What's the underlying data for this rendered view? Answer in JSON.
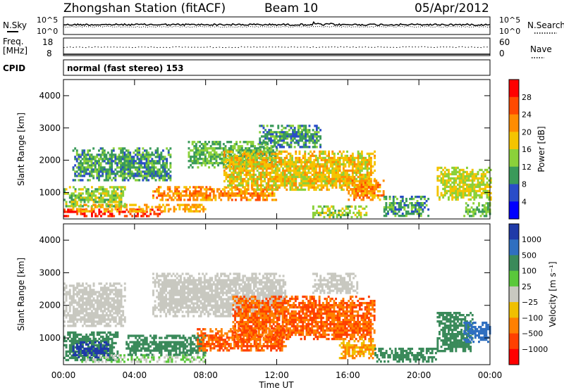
{
  "header": {
    "station": "Zhongshan Station (fitACF)",
    "beam": "Beam 10",
    "date": "05/Apr/2012"
  },
  "noise_panel": {
    "left_label": "N.Sky",
    "left_ticks": [
      "10^5",
      "10^0"
    ],
    "right_label": "N.Search",
    "right_ticks": [
      "10^5",
      "10^0"
    ]
  },
  "freq_panel": {
    "left_label_line1": "Freq.",
    "left_label_line2": "[MHz]",
    "left_ticks": [
      "18",
      "8"
    ],
    "right_label": "Nave",
    "right_ticks": [
      "60",
      "0"
    ]
  },
  "cpid_panel": {
    "label": "CPID",
    "text": "normal (fast stereo) 153"
  },
  "chart_data": [
    {
      "type": "heatmap",
      "name": "power",
      "ylabel": "Slant Range [km]",
      "xlabel": "Time UT",
      "ylim": [
        180,
        4500
      ],
      "yticks": [
        "1000",
        "2000",
        "3000",
        "4000"
      ],
      "xticks": [
        "00:00",
        "04:00",
        "08:00",
        "12:00",
        "16:00",
        "20:00",
        "00:00"
      ],
      "colorbar": {
        "label": "Power [dB]",
        "ticks": [
          "28",
          "24",
          "20",
          "16",
          "12",
          "8",
          "4"
        ],
        "colors": [
          "#ff0000",
          "#ff4a00",
          "#ff8c00",
          "#f5c400",
          "#8bd13a",
          "#3a9a5a",
          "#2a4dc8",
          "#0000ff"
        ]
      },
      "features": [
        {
          "t0": 0.0,
          "t1": 5.5,
          "r0": 250,
          "r1": 500,
          "level": 28
        },
        {
          "t0": 0.5,
          "t1": 8.0,
          "r0": 400,
          "r1": 650,
          "level": 20
        },
        {
          "t0": 0.0,
          "t1": 3.5,
          "r0": 600,
          "r1": 1200,
          "level": 14
        },
        {
          "t0": 0.5,
          "t1": 6.0,
          "r0": 1400,
          "r1": 2400,
          "level": 10
        },
        {
          "t0": 5.0,
          "t1": 12.0,
          "r0": 800,
          "r1": 1200,
          "level": 22
        },
        {
          "t0": 7.0,
          "t1": 12.0,
          "r0": 1800,
          "r1": 2600,
          "level": 12
        },
        {
          "t0": 9.0,
          "t1": 17.5,
          "r0": 1100,
          "r1": 2300,
          "level": 18
        },
        {
          "t0": 11.0,
          "t1": 14.5,
          "r0": 2400,
          "r1": 3100,
          "level": 10
        },
        {
          "t0": 14.0,
          "t1": 17.0,
          "r0": 250,
          "r1": 600,
          "level": 14
        },
        {
          "t0": 16.0,
          "t1": 18.0,
          "r0": 800,
          "r1": 1400,
          "level": 22
        },
        {
          "t0": 18.0,
          "t1": 20.5,
          "r0": 250,
          "r1": 900,
          "level": 10
        },
        {
          "t0": 21.0,
          "t1": 24.0,
          "r0": 800,
          "r1": 1800,
          "level": 16
        },
        {
          "t0": 22.5,
          "t1": 24.0,
          "r0": 250,
          "r1": 700,
          "level": 12
        }
      ]
    },
    {
      "type": "heatmap",
      "name": "velocity",
      "ylabel": "Slant Range [km]",
      "xlabel": "Time UT",
      "ylim": [
        180,
        4500
      ],
      "yticks": [
        "1000",
        "2000",
        "3000",
        "4000"
      ],
      "xticks": [
        "00:00",
        "04:00",
        "08:00",
        "12:00",
        "16:00",
        "20:00",
        "00:00"
      ],
      "colorbar": {
        "label": "Velocity [m s⁻¹]",
        "ticks": [
          "1000",
          "500",
          "100",
          "25",
          "−25",
          "−100",
          "−500",
          "−1000"
        ],
        "colors": [
          "#1f3aa8",
          "#2f6fc0",
          "#3a8a5a",
          "#5ac83a",
          "#c8c8c0",
          "#f0c000",
          "#ff8000",
          "#ff4000",
          "#ff0000"
        ]
      },
      "features": [
        {
          "t0": 0.0,
          "t1": 3.5,
          "r0": 1400,
          "r1": 2700,
          "level": 0
        },
        {
          "t0": 0.0,
          "t1": 3.0,
          "r0": 300,
          "r1": 1200,
          "level": 100
        },
        {
          "t0": 0.5,
          "t1": 2.5,
          "r0": 400,
          "r1": 900,
          "level": 1000
        },
        {
          "t0": 1.0,
          "t1": 8.0,
          "r0": 250,
          "r1": 500,
          "level": 25
        },
        {
          "t0": 3.5,
          "t1": 8.0,
          "r0": 500,
          "r1": 1100,
          "level": 100
        },
        {
          "t0": 5.0,
          "t1": 12.5,
          "r0": 1700,
          "r1": 3000,
          "level": 0
        },
        {
          "t0": 7.5,
          "t1": 12.5,
          "r0": 600,
          "r1": 1300,
          "level": -500
        },
        {
          "t0": 9.5,
          "t1": 17.5,
          "r0": 1000,
          "r1": 2300,
          "level": -500
        },
        {
          "t0": 14.0,
          "t1": 16.5,
          "r0": 2400,
          "r1": 3000,
          "level": 0
        },
        {
          "t0": 15.5,
          "t1": 17.5,
          "r0": 400,
          "r1": 1000,
          "level": -100
        },
        {
          "t0": 17.5,
          "t1": 21.0,
          "r0": 250,
          "r1": 700,
          "level": 100
        },
        {
          "t0": 21.0,
          "t1": 23.0,
          "r0": 600,
          "r1": 1800,
          "level": 100
        },
        {
          "t0": 22.5,
          "t1": 24.0,
          "r0": 900,
          "r1": 1500,
          "level": 500
        }
      ]
    }
  ]
}
